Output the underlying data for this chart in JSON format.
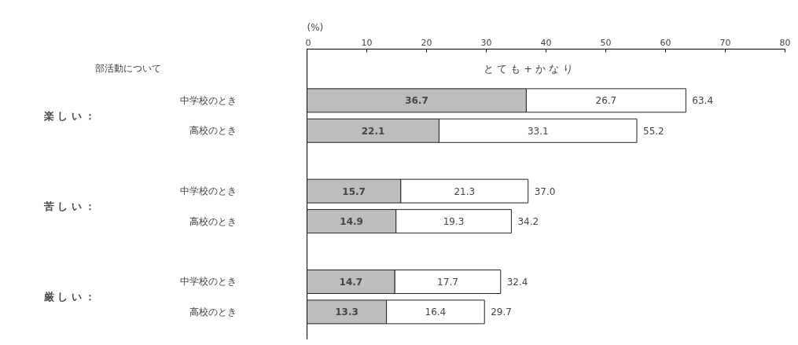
{
  "chart_data": {
    "type": "bar",
    "orientation": "horizontal",
    "stacked": true,
    "xlabel": "(%)",
    "ylabel": "部活動について",
    "subtitle": "と て も + か な り",
    "categories": [
      "中学校のとき",
      "高校のとき",
      "中学校のとき",
      "高校のとき",
      "中学校のとき",
      "高校のとき"
    ],
    "annotations": [
      "楽 し い ：",
      "苦 し い ：",
      "厳 し い ："
    ],
    "series": [
      {
        "color": "#bdbdbd",
        "values": [
          36.7,
          22.1,
          15.7,
          14.9,
          14.7,
          13.3
        ]
      },
      {
        "color": "#ffffff",
        "values": [
          26.7,
          33.1,
          21.3,
          19.3,
          17.7,
          16.4
        ]
      }
    ],
    "data_labels": true,
    "totals": [
      "63.4",
      "55.2",
      "37.0",
      "34.2",
      "32.4",
      "29.7"
    ],
    "xlim": [
      0,
      80
    ],
    "xticks": [
      0,
      10,
      20,
      30,
      40,
      50,
      60,
      70,
      80
    ],
    "grid": false
  }
}
